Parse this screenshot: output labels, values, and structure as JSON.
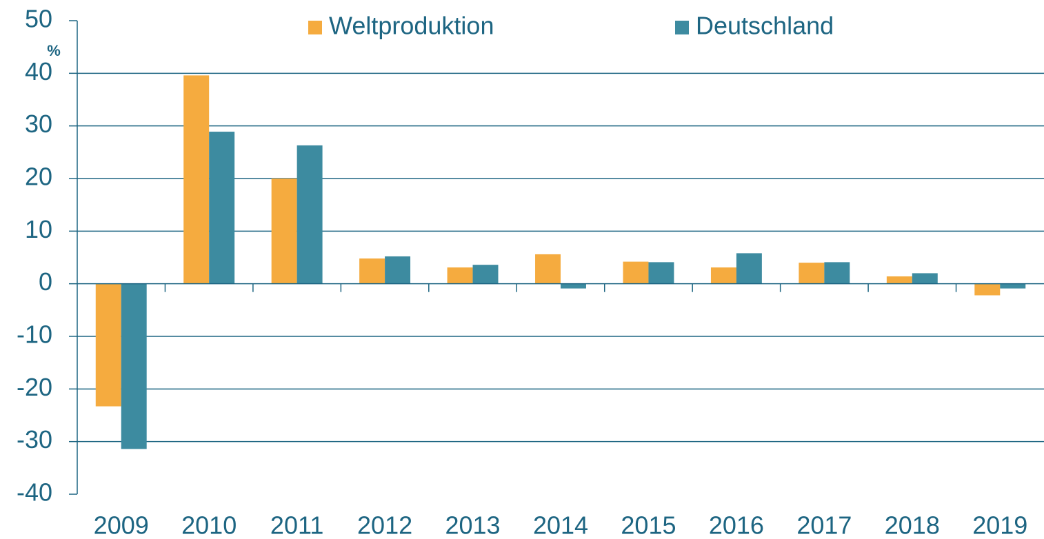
{
  "chart_data": {
    "type": "bar",
    "y_unit": "%",
    "categories": [
      "2009",
      "2010",
      "2011",
      "2012",
      "2013",
      "2014",
      "2015",
      "2016",
      "2017",
      "2018",
      "2019"
    ],
    "series": [
      {
        "name": "Weltproduktion",
        "color": "#f5ab3f",
        "values": [
          -23.3,
          39.6,
          20,
          4.8,
          3.1,
          5.6,
          4.2,
          3.1,
          4.0,
          1.4,
          -2.2
        ]
      },
      {
        "name": "Deutschland",
        "color": "#3d8ba0",
        "values": [
          -31.4,
          28.9,
          26.3,
          5.2,
          3.6,
          -0.9,
          4.1,
          5.8,
          4.1,
          2.0,
          -0.9
        ]
      }
    ],
    "ylim": [
      -40,
      50
    ],
    "yticks": [
      -40,
      -30,
      -20,
      -10,
      0,
      10,
      20,
      30,
      40,
      50
    ],
    "grid": true
  }
}
